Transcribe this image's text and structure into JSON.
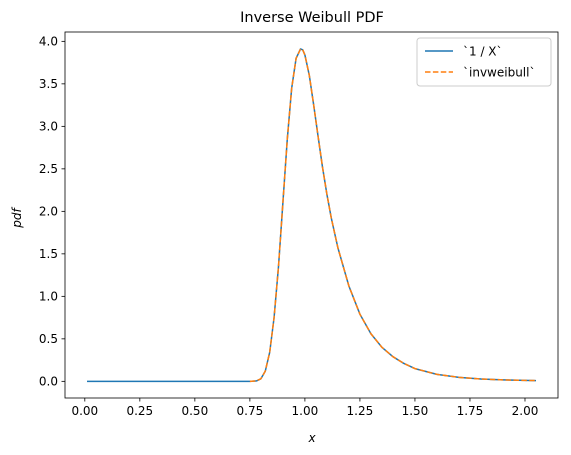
{
  "chart_data": {
    "type": "line",
    "title": "Inverse Weibull PDF",
    "xlabel": "x",
    "ylabel": "pdf",
    "xlim": [
      -0.09,
      2.15
    ],
    "ylim": [
      -0.196,
      4.11
    ],
    "xticks": [
      0.0,
      0.25,
      0.5,
      0.75,
      1.0,
      1.25,
      1.5,
      1.75,
      2.0
    ],
    "xtick_labels": [
      "0.00",
      "0.25",
      "0.50",
      "0.75",
      "1.00",
      "1.25",
      "1.50",
      "1.75",
      "2.00"
    ],
    "yticks": [
      0.0,
      0.5,
      1.0,
      1.5,
      2.0,
      2.5,
      3.0,
      3.5,
      4.0
    ],
    "ytick_labels": [
      "0.0",
      "0.5",
      "1.0",
      "1.5",
      "2.0",
      "2.5",
      "3.0",
      "3.5",
      "4.0"
    ],
    "grid": false,
    "legend_position": "top-right",
    "series": [
      {
        "name": "`1 / X`",
        "color": "#1f77b4",
        "style": "solid",
        "x": [
          0.01,
          0.1,
          0.2,
          0.3,
          0.4,
          0.5,
          0.6,
          0.7,
          0.75,
          0.78,
          0.8,
          0.82,
          0.84,
          0.86,
          0.88,
          0.9,
          0.92,
          0.94,
          0.96,
          0.98,
          0.99,
          1.0,
          1.02,
          1.04,
          1.06,
          1.08,
          1.1,
          1.12,
          1.15,
          1.2,
          1.25,
          1.3,
          1.35,
          1.4,
          1.45,
          1.5,
          1.6,
          1.7,
          1.8,
          1.9,
          2.0,
          2.05
        ],
        "y": [
          0.0,
          0.0,
          0.0,
          0.0,
          0.0,
          0.0,
          0.0,
          0.0,
          0.0,
          0.005,
          0.03,
          0.12,
          0.34,
          0.75,
          1.35,
          2.1,
          2.85,
          3.45,
          3.8,
          3.91,
          3.9,
          3.84,
          3.6,
          3.25,
          2.88,
          2.52,
          2.2,
          1.92,
          1.57,
          1.12,
          0.79,
          0.56,
          0.4,
          0.29,
          0.21,
          0.15,
          0.082,
          0.047,
          0.028,
          0.017,
          0.011,
          0.009
        ]
      },
      {
        "name": "`invweibull`",
        "color": "#ff7f0e",
        "style": "dashed",
        "x": [
          0.75,
          0.78,
          0.8,
          0.82,
          0.84,
          0.86,
          0.88,
          0.9,
          0.92,
          0.94,
          0.96,
          0.98,
          0.99,
          1.0,
          1.02,
          1.04,
          1.06,
          1.08,
          1.1,
          1.12,
          1.15,
          1.2,
          1.25,
          1.3,
          1.35,
          1.4,
          1.45,
          1.5,
          1.6,
          1.7,
          1.8,
          1.9,
          2.0,
          2.05
        ],
        "y": [
          0.0,
          0.005,
          0.03,
          0.12,
          0.34,
          0.75,
          1.35,
          2.1,
          2.85,
          3.45,
          3.8,
          3.91,
          3.9,
          3.84,
          3.6,
          3.25,
          2.88,
          2.52,
          2.2,
          1.92,
          1.57,
          1.12,
          0.79,
          0.56,
          0.4,
          0.29,
          0.21,
          0.15,
          0.082,
          0.047,
          0.028,
          0.017,
          0.011,
          0.009
        ]
      }
    ]
  }
}
